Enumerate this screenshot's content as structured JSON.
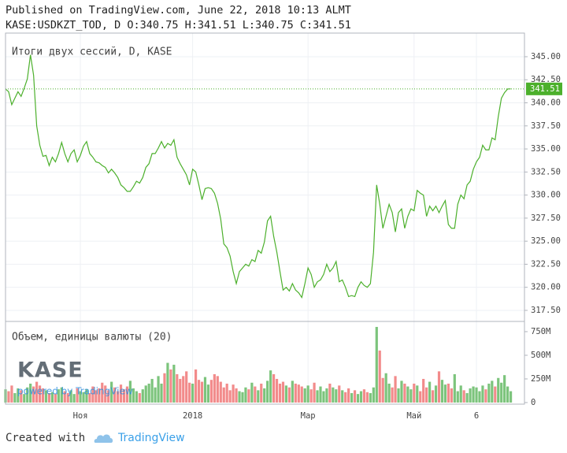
{
  "header": {
    "line1": "Published on TradingView.com, June 22, 2018 10:13 ALMT",
    "line2": "KASE:USDKZT_TOD, D O:340.75 H:341.51 L:340.75 C:341.51"
  },
  "chart_data": [
    {
      "type": "line",
      "title": "Итоги двух сессий, D, KASE",
      "color": "#4cb02c",
      "last_value_color": "#4cb02c",
      "values": [
        341.5,
        341.2,
        339.8,
        340.5,
        341.2,
        340.7,
        341.6,
        342.6,
        345.2,
        343.0,
        337.5,
        335.4,
        334.2,
        334.3,
        333.2,
        334.1,
        333.6,
        334.5,
        335.7,
        334.5,
        333.6,
        334.5,
        334.9,
        333.6,
        334.3,
        335.3,
        335.8,
        334.5,
        334.1,
        333.6,
        333.5,
        333.2,
        333.0,
        332.4,
        332.8,
        332.4,
        331.9,
        331.1,
        330.8,
        330.4,
        330.4,
        330.9,
        331.5,
        331.3,
        331.9,
        333.0,
        333.4,
        334.5,
        334.5,
        335.1,
        335.8,
        335.1,
        335.6,
        335.4,
        336.0,
        334.1,
        333.4,
        332.8,
        332.2,
        331.1,
        332.8,
        332.5,
        331.1,
        329.5,
        330.7,
        330.8,
        330.7,
        330.2,
        329.1,
        327.4,
        324.7,
        324.3,
        323.4,
        321.7,
        320.4,
        321.7,
        322.1,
        322.5,
        322.3,
        323.0,
        322.8,
        324.0,
        323.7,
        324.9,
        327.2,
        327.7,
        325.5,
        323.8,
        321.7,
        319.7,
        320.0,
        319.6,
        320.4,
        319.7,
        319.4,
        318.9,
        320.4,
        322.1,
        321.4,
        320.0,
        320.6,
        320.8,
        321.4,
        322.5,
        321.7,
        322.1,
        322.8,
        320.6,
        320.8,
        320.0,
        319.0,
        319.1,
        319.0,
        320.0,
        320.6,
        320.2,
        320.0,
        320.4,
        323.8,
        331.1,
        329.0,
        326.4,
        327.7,
        329.0,
        328.1,
        326.0,
        328.1,
        328.5,
        326.4,
        327.7,
        328.5,
        328.3,
        330.5,
        330.2,
        330.0,
        327.7,
        328.8,
        328.3,
        328.8,
        328.1,
        328.8,
        329.4,
        326.8,
        326.4,
        326.4,
        329.0,
        330.0,
        329.6,
        331.1,
        331.5,
        332.8,
        333.6,
        334.1,
        335.4,
        334.9,
        334.9,
        336.2,
        336.0,
        338.5,
        340.5,
        341.1,
        341.5,
        341.51
      ],
      "xlim": [
        0,
        166.4
      ],
      "xticks": [
        {
          "value": 24,
          "label": "Ноя"
        },
        {
          "value": 60,
          "label": "2018"
        },
        {
          "value": 97,
          "label": "Мар"
        },
        {
          "value": 131,
          "label": "Май"
        },
        {
          "value": 151,
          "label": "6"
        }
      ],
      "ylim": [
        316.3,
        347.56
      ],
      "yticks": [
        {
          "value": 317.5,
          "label": "317.50"
        },
        {
          "value": 320,
          "label": "320.00"
        },
        {
          "value": 322.5,
          "label": "322.50"
        },
        {
          "value": 325,
          "label": "325.00"
        },
        {
          "value": 327.5,
          "label": "327.50"
        },
        {
          "value": 330,
          "label": "330.00"
        },
        {
          "value": 332.5,
          "label": "332.50"
        },
        {
          "value": 335,
          "label": "335.00"
        },
        {
          "value": 337.5,
          "label": "337.50"
        },
        {
          "value": 340,
          "label": "340.00"
        },
        {
          "value": 342.5,
          "label": "342.50"
        },
        {
          "value": 345,
          "label": "345.00"
        }
      ],
      "grid": true
    },
    {
      "type": "bar",
      "title": "Объем, единицы валюты (20)",
      "up_color": "#7cc47c",
      "down_color": "#f28b8b",
      "values": [
        140,
        120,
        180,
        100,
        150,
        130,
        90,
        160,
        200,
        170,
        220,
        180,
        150,
        130,
        100,
        110,
        90,
        140,
        160,
        120,
        100,
        130,
        90,
        150,
        120,
        110,
        140,
        100,
        170,
        130,
        150,
        210,
        180,
        130,
        220,
        160,
        120,
        190,
        140,
        170,
        230,
        150,
        120,
        100,
        140,
        180,
        200,
        250,
        160,
        280,
        200,
        310,
        420,
        350,
        400,
        300,
        250,
        280,
        330,
        210,
        200,
        350,
        240,
        220,
        270,
        190,
        240,
        300,
        280,
        220,
        160,
        200,
        130,
        190,
        150,
        120,
        110,
        160,
        140,
        210,
        170,
        130,
        200,
        150,
        230,
        340,
        300,
        250,
        200,
        220,
        180,
        160,
        230,
        200,
        190,
        170,
        150,
        180,
        140,
        210,
        130,
        170,
        120,
        150,
        200,
        160,
        140,
        180,
        130,
        110,
        150,
        100,
        130,
        90,
        120,
        140,
        110,
        100,
        160,
        800,
        550,
        260,
        310,
        200,
        160,
        280,
        150,
        230,
        200,
        170,
        140,
        200,
        180,
        120,
        250,
        160,
        220,
        130,
        180,
        330,
        240,
        190,
        200,
        150,
        300,
        120,
        180,
        130,
        100,
        150,
        170,
        160,
        120,
        180,
        140,
        200,
        230,
        170,
        260,
        210,
        290,
        170,
        120
      ],
      "ylim": [
        -17,
        858
      ],
      "yticks": [
        0,
        {
          "value": 250,
          "label": "250M"
        },
        {
          "value": 500,
          "label": "500M"
        },
        {
          "value": 750,
          "label": "750M"
        }
      ]
    }
  ],
  "watermark": {
    "logo": "KASE",
    "text": "powered by TradingView"
  },
  "footer": {
    "text": "Created with",
    "brand": "TradingView"
  }
}
